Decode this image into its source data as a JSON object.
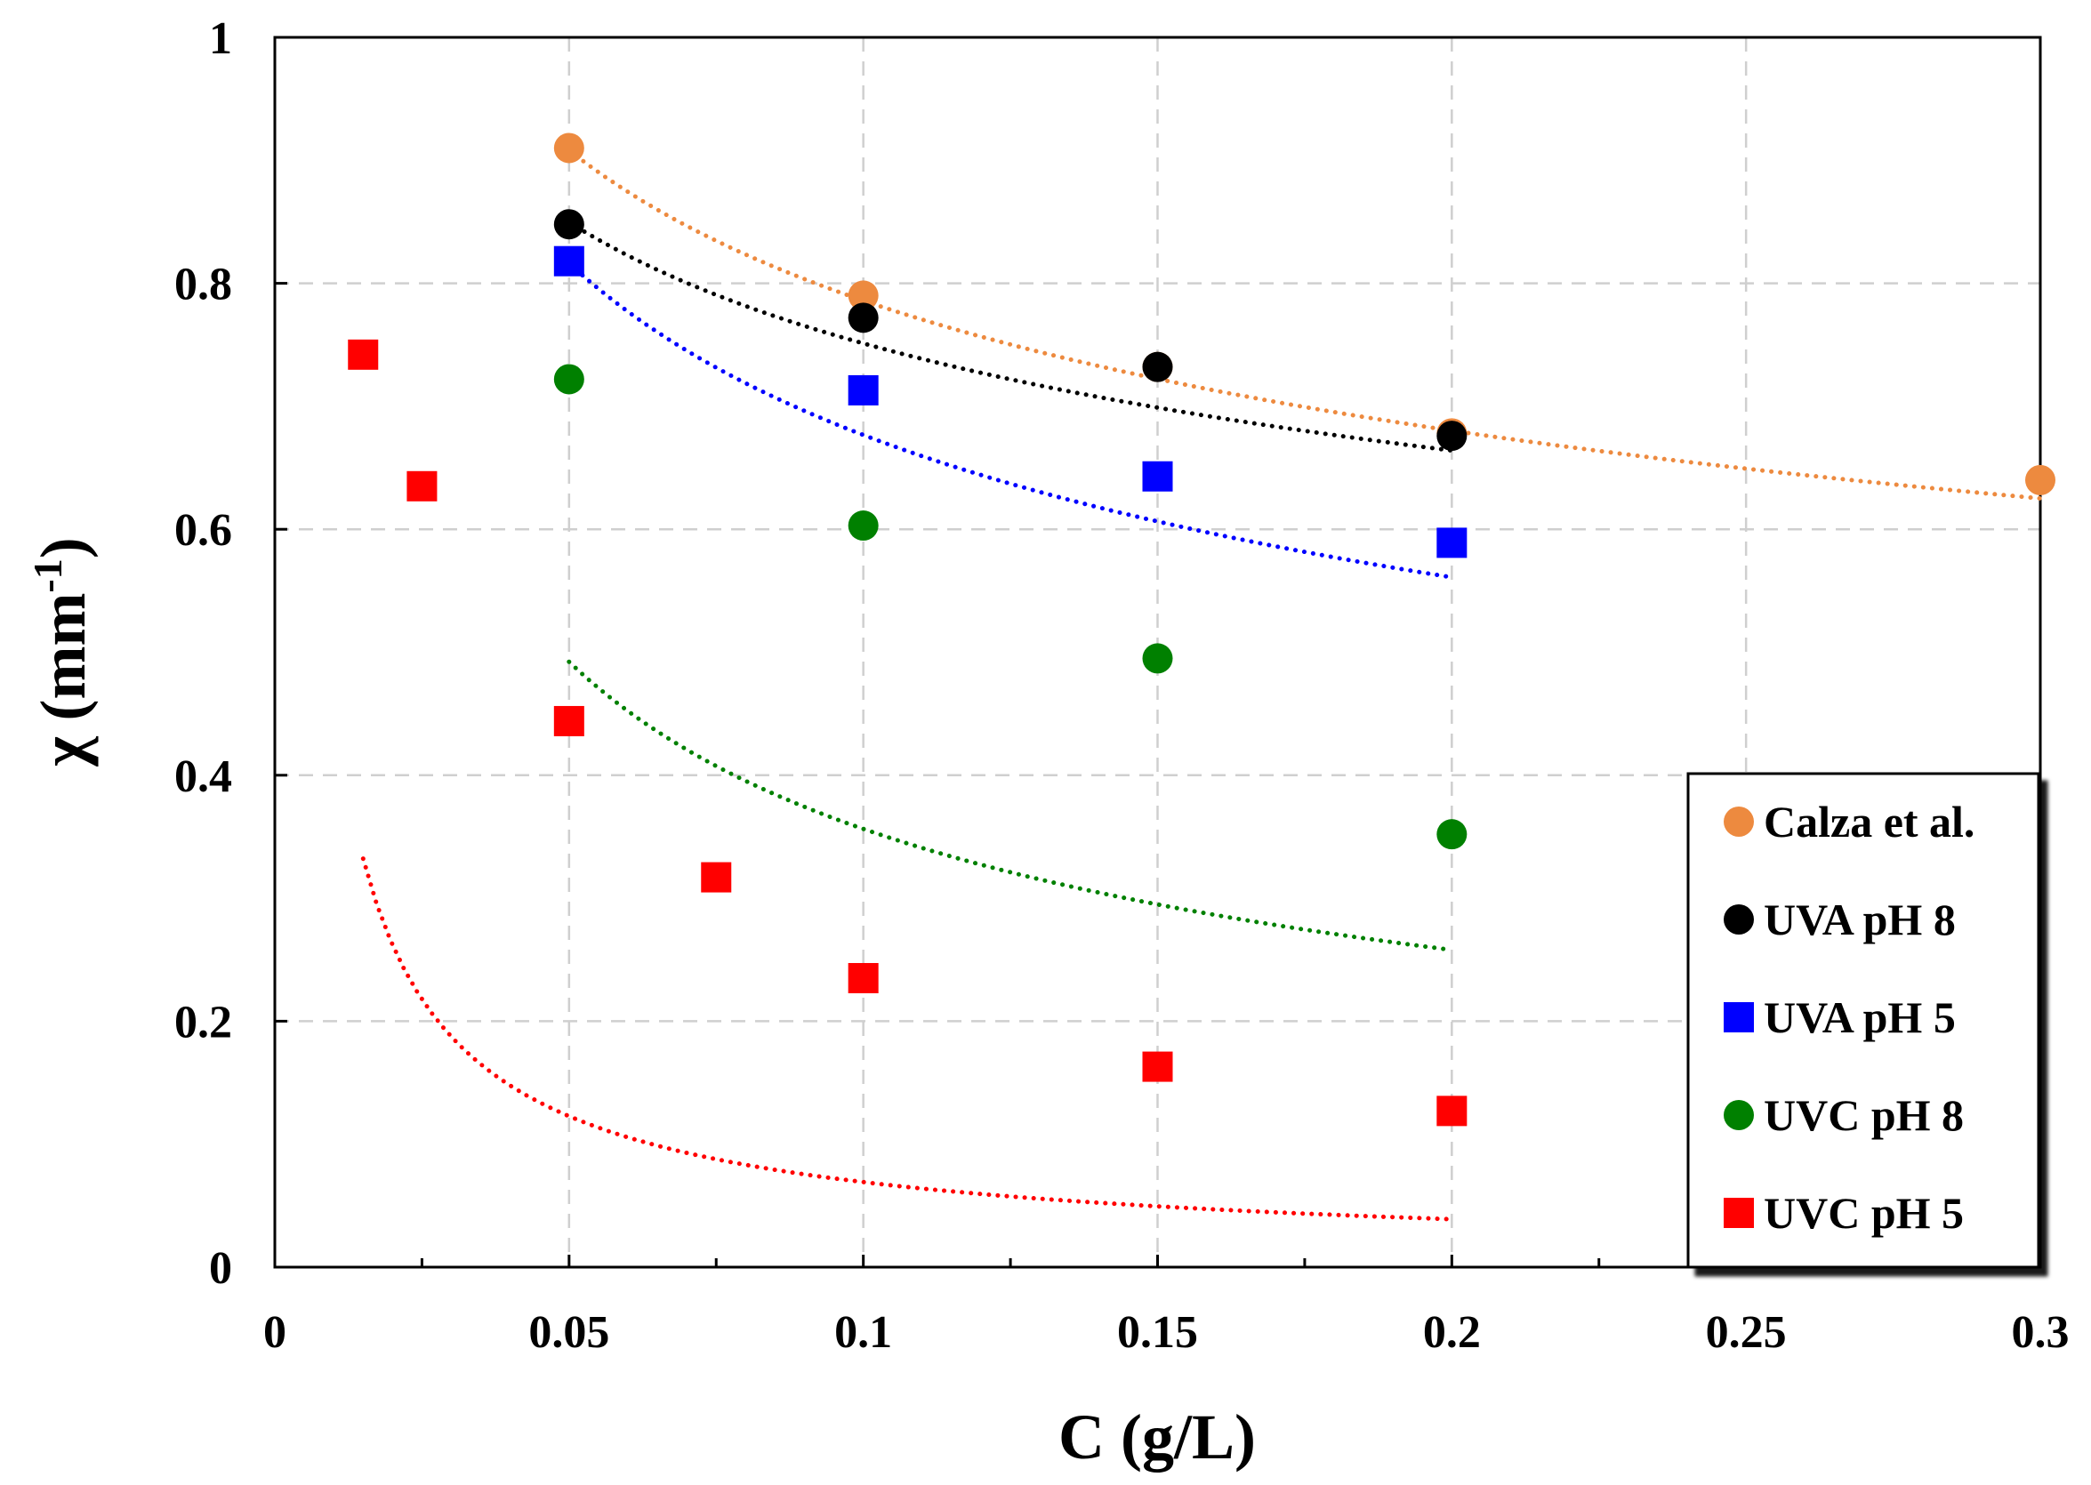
{
  "chart_data": {
    "type": "scatter",
    "title": "",
    "xlabel": "C (g/L)",
    "ylabel_main": "χ (mm",
    "ylabel_sup": "-1",
    "ylabel_close": ")",
    "xlim": [
      0,
      0.3
    ],
    "ylim": [
      0,
      1
    ],
    "xticks": [
      0,
      0.05,
      0.1,
      0.15,
      0.2,
      0.25,
      0.3
    ],
    "xtick_labels": [
      "0",
      "0.05",
      "0.1",
      "0.15",
      "0.2",
      "0.25",
      "0.3"
    ],
    "yticks": [
      0,
      0.2,
      0.4,
      0.6,
      0.8,
      1
    ],
    "ytick_labels": [
      "0",
      "0.2",
      "0.4",
      "0.6",
      "0.8",
      "1"
    ],
    "grid": true,
    "legend_position": "bottom-right",
    "series": [
      {
        "name": "Calza et al.",
        "marker": "circle",
        "color": "#ED8A3F",
        "x": [
          0.05,
          0.1,
          0.15,
          0.2,
          0.3
        ],
        "y": [
          0.91,
          0.79,
          0.732,
          0.678,
          0.64
        ],
        "fit": {
          "x": [
            0.05,
            0.3
          ],
          "a": 0.4863,
          "b": -0.2085
        }
      },
      {
        "name": "UVA pH 8",
        "marker": "circle",
        "color": "#000000",
        "x": [
          0.05,
          0.1,
          0.15,
          0.2
        ],
        "y": [
          0.848,
          0.772,
          0.732,
          0.676
        ],
        "fit": {
          "x": [
            0.05,
            0.2
          ],
          "a": 0.4988,
          "b": -0.1778
        }
      },
      {
        "name": "UVA pH 5",
        "marker": "square",
        "color": "#0000FF",
        "x": [
          0.05,
          0.1,
          0.15,
          0.2
        ],
        "y": [
          0.818,
          0.713,
          0.643,
          0.589
        ],
        "fit": {
          "x": [
            0.05,
            0.2
          ],
          "a": 0.3629,
          "b": -0.2706
        }
      },
      {
        "name": "UVC pH 8",
        "marker": "circle",
        "color": "#008000",
        "x": [
          0.05,
          0.1,
          0.15,
          0.2
        ],
        "y": [
          0.722,
          0.603,
          0.495,
          0.352
        ],
        "fit": {
          "x": [
            0.05,
            0.2
          ],
          "a": 0.1218,
          "b": -0.4662
        }
      },
      {
        "name": "UVC pH 5",
        "marker": "square",
        "color": "#FF0000",
        "x": [
          0.015,
          0.025,
          0.05,
          0.075,
          0.1,
          0.15,
          0.2
        ],
        "y": [
          0.742,
          0.635,
          0.444,
          0.317,
          0.235,
          0.163,
          0.127
        ],
        "fit": {
          "x": [
            0.015,
            0.2
          ],
          "a": 0.0103,
          "b": -0.8271
        }
      }
    ]
  }
}
